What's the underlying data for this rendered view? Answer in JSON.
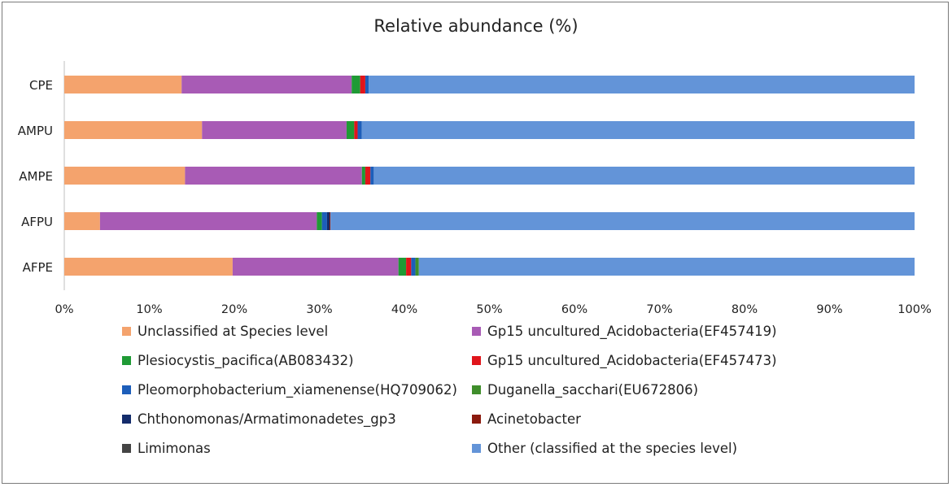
{
  "chart_data": {
    "type": "bar",
    "orientation": "horizontal",
    "stacked": "percent",
    "title": "Relative abundance (%)",
    "categories": [
      "CPE",
      "AMPU",
      "AMPE",
      "AFPU",
      "AFPE"
    ],
    "x_ticks": [
      "0%",
      "10%",
      "20%",
      "30%",
      "40%",
      "50%",
      "60%",
      "70%",
      "80%",
      "90%",
      "100%"
    ],
    "xlim": [
      0,
      100
    ],
    "legend_position": "bottom",
    "series": [
      {
        "name": "Unclassified at Species level",
        "color": "#f4a36d",
        "values": [
          13.8,
          16.2,
          14.2,
          4.2,
          19.8
        ]
      },
      {
        "name": "Gp15 uncultured_Acidobacteria(EF457419)",
        "color": "#a85bb5",
        "values": [
          20.0,
          17.0,
          20.8,
          25.5,
          19.5
        ]
      },
      {
        "name": "Plesiocystis_pacifica(AB083432)",
        "color": "#1f9a35",
        "values": [
          1.0,
          0.9,
          0.4,
          0.6,
          0.9
        ]
      },
      {
        "name": "Gp15 uncultured_Acidobacteria(EF457473)",
        "color": "#e0151b",
        "values": [
          0.6,
          0.4,
          0.6,
          0.0,
          0.6
        ]
      },
      {
        "name": "Pleomorphobacterium_xiamenense(HQ709062)",
        "color": "#1d5eba",
        "values": [
          0.4,
          0.5,
          0.4,
          0.6,
          0.5
        ]
      },
      {
        "name": "Duganella_sacchari(EU672806)",
        "color": "#3f8e2b",
        "values": [
          0.0,
          0.0,
          0.0,
          0.0,
          0.4
        ]
      },
      {
        "name": "Chthonomonas/Armatimonadetes_gp3",
        "color": "#142c6b",
        "values": [
          0.0,
          0.0,
          0.0,
          0.3,
          0.0
        ]
      },
      {
        "name": "Acinetobacter",
        "color": "#8b1a0e",
        "values": [
          0.0,
          0.0,
          0.0,
          0.1,
          0.0
        ]
      },
      {
        "name": "Limimonas",
        "color": "#444444",
        "values": [
          0.0,
          0.0,
          0.0,
          0.0,
          0.0
        ]
      },
      {
        "name": "Other (classified at the species level)",
        "color": "#6394d8",
        "values": [
          64.2,
          65.0,
          63.6,
          68.7,
          58.3
        ]
      }
    ]
  }
}
